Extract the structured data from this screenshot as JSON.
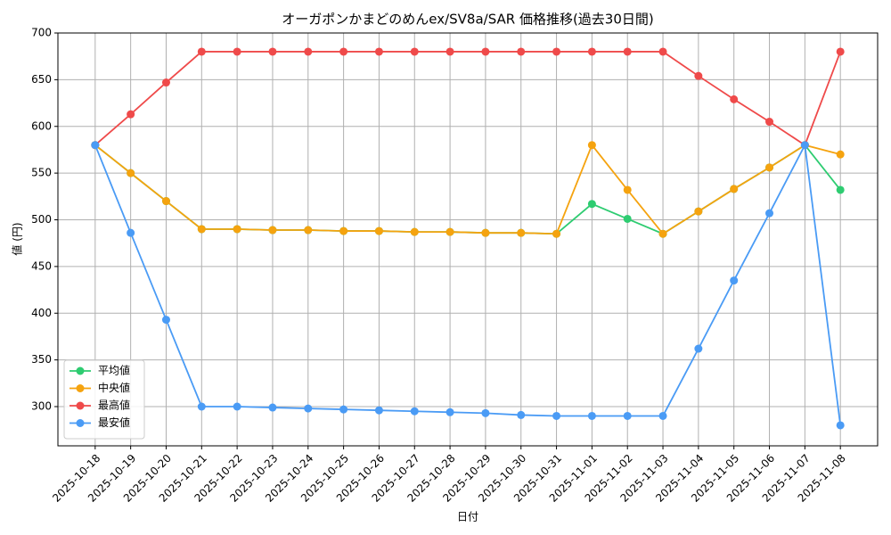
{
  "chart_data": {
    "type": "line",
    "title": "オーガポンかまどのめんex/SV8a/SAR 価格推移(過去30日間)",
    "x_label": "日付",
    "y_label": "値 (円)",
    "categories": [
      "2025-10-18",
      "2025-10-19",
      "2025-10-20",
      "2025-10-21",
      "2025-10-22",
      "2025-10-23",
      "2025-10-24",
      "2025-10-25",
      "2025-10-26",
      "2025-10-27",
      "2025-10-28",
      "2025-10-29",
      "2025-10-30",
      "2025-10-31",
      "2025-11-01",
      "2025-11-02",
      "2025-11-03",
      "2025-11-04",
      "2025-11-05",
      "2025-11-06",
      "2025-11-07",
      "2025-11-08"
    ],
    "series": [
      {
        "name": "平均値",
        "color": "#2ecc71",
        "values": [
          580,
          550,
          520,
          490,
          490,
          489,
          489,
          488,
          488,
          487,
          487,
          486,
          486,
          485,
          517,
          501,
          485,
          509,
          533,
          556,
          580,
          532
        ]
      },
      {
        "name": "中央値",
        "color": "#f5a30f",
        "values": [
          580,
          550,
          520,
          490,
          490,
          489,
          489,
          488,
          488,
          487,
          487,
          486,
          486,
          485,
          580,
          532,
          485,
          509,
          533,
          556,
          580,
          570
        ]
      },
      {
        "name": "最高値",
        "color": "#ef4a4a",
        "values": [
          580,
          613,
          647,
          680,
          680,
          680,
          680,
          680,
          680,
          680,
          680,
          680,
          680,
          680,
          680,
          680,
          680,
          654,
          629,
          605,
          580,
          680
        ]
      },
      {
        "name": "最安値",
        "color": "#4a9bf5",
        "values": [
          580,
          486,
          393,
          300,
          300,
          299,
          298,
          297,
          296,
          295,
          294,
          293,
          291,
          290,
          290,
          290,
          290,
          362,
          435,
          507,
          580,
          280
        ]
      }
    ],
    "ylim": [
      258,
      700
    ],
    "yticks": [
      300,
      350,
      400,
      450,
      500,
      550,
      600,
      650,
      700
    ],
    "grid": true,
    "legend": "lower left"
  }
}
